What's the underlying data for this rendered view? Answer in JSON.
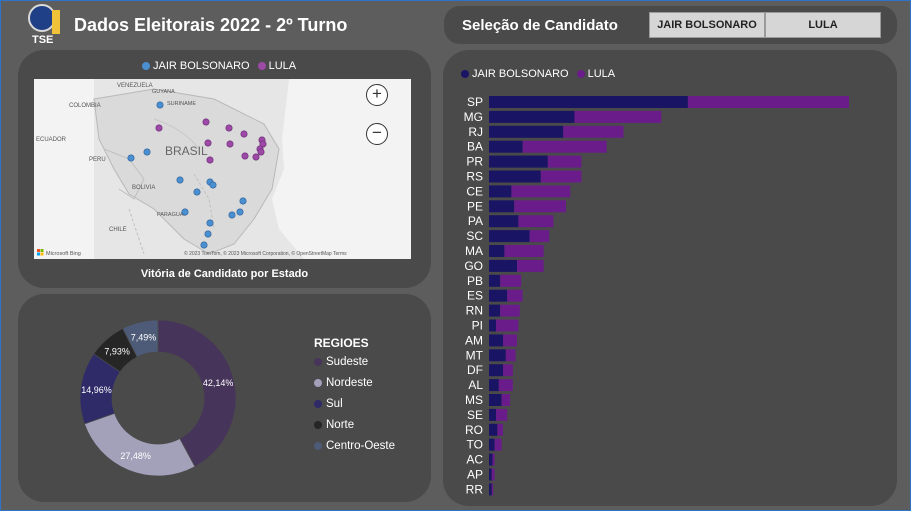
{
  "header": {
    "title": "Dados Eleitorais 2022 - 2º Turno",
    "logo_text": "TSE"
  },
  "selection": {
    "title": "Seleção de Candidato",
    "buttons": [
      "JAIR BOLSONARO",
      "LULA"
    ]
  },
  "colors": {
    "bolsonaro": "#1a1464",
    "lula": "#6a1d8a",
    "bolsonaro_dot": "#4a8fd0",
    "lula_dot": "#9c4aa6",
    "panel": "#4a4a4a",
    "background": "#5d5d5d"
  },
  "map": {
    "legend": [
      "JAIR BOLSONARO",
      "LULA"
    ],
    "caption": "Vitória de Candidato por Estado",
    "country_labels": [
      "VENEZUELA",
      "GUYANA",
      "SURINAME",
      "COLOMBIA",
      "ECUADOR",
      "PERU",
      "BRASIL",
      "BOLIVIA",
      "PARAGUAY",
      "CHILE"
    ],
    "attribution": "© 2023 TomTom, © 2023 Microsoft Corporation, © OpenStreetMap  Terms",
    "bing_label": "Microsoft Bing",
    "zoom_in": "+",
    "zoom_out": "−"
  },
  "regions": {
    "title": "REGIOES",
    "items": [
      {
        "name": "Sudeste",
        "value": "42,14%",
        "color": "#47345a"
      },
      {
        "name": "Nordeste",
        "value": "27,48%",
        "color": "#a3a0ba"
      },
      {
        "name": "Sul",
        "value": "14,96%",
        "color": "#2f2a68"
      },
      {
        "name": "Norte",
        "value": "7,93%",
        "color": "#262626"
      },
      {
        "name": "Centro-Oeste",
        "value": "7,49%",
        "color": "#4d5a78"
      }
    ]
  },
  "chart_data": {
    "type": "bar",
    "orientation": "horizontal",
    "stacked": true,
    "legend": [
      "JAIR BOLSONARO",
      "LULA"
    ],
    "categories": [
      "SP",
      "MG",
      "RJ",
      "BA",
      "PR",
      "RS",
      "CE",
      "PE",
      "PA",
      "SC",
      "MA",
      "GO",
      "PB",
      "ES",
      "RN",
      "PI",
      "AM",
      "MT",
      "DF",
      "AL",
      "MS",
      "SE",
      "RO",
      "TO",
      "AC",
      "AP",
      "RR"
    ],
    "series": [
      {
        "name": "JAIR BOLSONARO",
        "values": [
          14.2,
          6.1,
          5.3,
          2.4,
          4.2,
          3.7,
          1.6,
          1.8,
          2.1,
          2.9,
          1.1,
          2.0,
          0.8,
          1.3,
          0.8,
          0.5,
          1.0,
          1.2,
          1.0,
          0.7,
          0.9,
          0.5,
          0.6,
          0.4,
          0.25,
          0.2,
          0.2
        ]
      },
      {
        "name": "LULA",
        "values": [
          11.5,
          6.2,
          4.3,
          6.0,
          2.4,
          2.9,
          4.2,
          3.7,
          2.5,
          1.4,
          2.8,
          1.9,
          1.5,
          1.1,
          1.4,
          1.6,
          1.0,
          0.7,
          0.7,
          1.0,
          0.6,
          0.8,
          0.4,
          0.5,
          0.15,
          0.2,
          0.1
        ]
      }
    ]
  }
}
